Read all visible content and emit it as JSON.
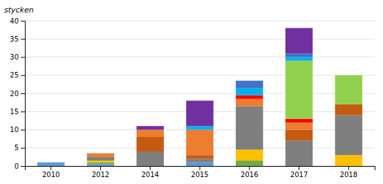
{
  "chart_data": {
    "type": "bar",
    "stacked": true,
    "grid": true,
    "y_label": "stycken",
    "categories": [
      "2010",
      "2012",
      "2014",
      "2015",
      "2016",
      "2017",
      "2018"
    ],
    "ylim": [
      0,
      40
    ],
    "yticks": [
      0,
      5,
      10,
      15,
      20,
      25,
      30,
      35,
      40
    ],
    "series": [
      {
        "color": "#5b9bd5",
        "values": [
          1,
          0.5,
          0,
          1,
          0,
          0,
          0
        ]
      },
      {
        "color": "#70ad47",
        "values": [
          0,
          0.5,
          0,
          0,
          1.5,
          0,
          0
        ]
      },
      {
        "color": "#ffc000",
        "values": [
          0,
          0.5,
          0,
          0,
          3,
          0,
          3
        ]
      },
      {
        "color": "#7f7f7f",
        "values": [
          0,
          1,
          4,
          1,
          12,
          7,
          11
        ]
      },
      {
        "color": "#c55a11",
        "values": [
          0,
          0,
          4,
          1,
          0,
          3,
          3
        ]
      },
      {
        "color": "#ed7d31",
        "values": [
          0,
          1,
          2,
          7,
          2,
          2,
          0
        ]
      },
      {
        "color": "#ff0000",
        "values": [
          0,
          0,
          0,
          0,
          1,
          1,
          0
        ]
      },
      {
        "color": "#92d050",
        "values": [
          0,
          0,
          0,
          0,
          0,
          16,
          8
        ]
      },
      {
        "color": "#00b0f0",
        "values": [
          0,
          0,
          0,
          1,
          2,
          1,
          0
        ]
      },
      {
        "color": "#4472c4",
        "values": [
          0,
          0,
          0,
          0,
          2,
          1,
          0
        ]
      },
      {
        "color": "#7030a0",
        "values": [
          0,
          0,
          1,
          7,
          0,
          7,
          0
        ]
      }
    ]
  }
}
